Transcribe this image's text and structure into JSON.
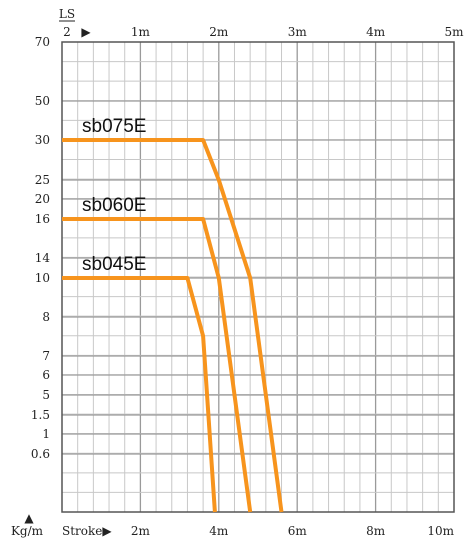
{
  "chart_data": {
    "type": "line",
    "top_axis": {
      "caption_numerator": "LS",
      "caption_denominator": "2",
      "caption_arrow": "▶",
      "ticks": [
        "1m",
        "2m",
        "3m",
        "4m",
        "5m"
      ]
    },
    "bottom_axis": {
      "caption": "Stroke▶",
      "ticks": [
        "2m",
        "4m",
        "6m",
        "8m",
        "10m"
      ],
      "range": [
        0,
        10
      ]
    },
    "y_axis": {
      "unit_caption": "Kg/m",
      "unit_arrow": "▲",
      "ticks": [
        "70",
        "50",
        "30",
        "25",
        "20",
        "16",
        "14",
        "10",
        "8",
        "7",
        "6",
        "5",
        "1.5",
        "1",
        "0.6"
      ]
    },
    "grid": true,
    "series": [
      {
        "name": "sb075E",
        "color": "#F7941D",
        "points": [
          {
            "stroke_m": 0.0,
            "load": "30"
          },
          {
            "stroke_m": 3.6,
            "load": "30"
          },
          {
            "stroke_m": 4.0,
            "load": "25"
          },
          {
            "stroke_m": 4.8,
            "load": "10"
          },
          {
            "stroke_m": 5.6,
            "load": "0"
          }
        ]
      },
      {
        "name": "sb060E",
        "color": "#F7941D",
        "points": [
          {
            "stroke_m": 0.0,
            "load": "16"
          },
          {
            "stroke_m": 3.6,
            "load": "16"
          },
          {
            "stroke_m": 4.0,
            "load": "10"
          },
          {
            "stroke_m": 4.8,
            "load": "0"
          }
        ]
      },
      {
        "name": "sb045E",
        "color": "#F7941D",
        "points": [
          {
            "stroke_m": 0.0,
            "load": "10"
          },
          {
            "stroke_m": 3.2,
            "load": "10"
          },
          {
            "stroke_m": 3.6,
            "load": "7.5"
          },
          {
            "stroke_m": 3.9,
            "load": "0"
          }
        ]
      }
    ]
  }
}
